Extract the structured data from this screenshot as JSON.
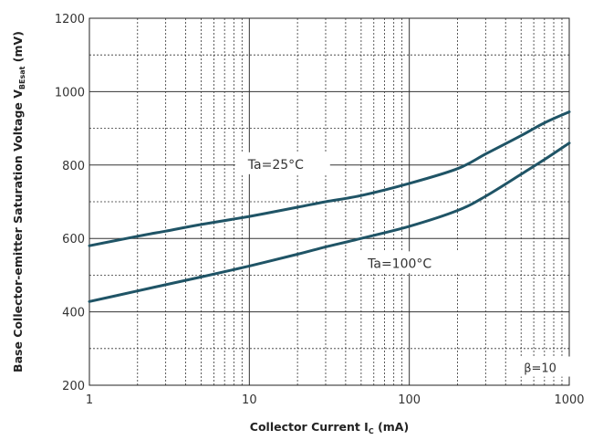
{
  "chart_data": {
    "type": "line",
    "xscale": "log",
    "xlim": [
      1,
      1000
    ],
    "ylim": [
      200,
      1200
    ],
    "x_ticks": [
      1,
      10,
      100,
      1000
    ],
    "x_tick_labels": [
      "1",
      "10",
      "100",
      "1000"
    ],
    "y_ticks": [
      200,
      400,
      600,
      800,
      1000,
      1200
    ],
    "y_tick_labels": [
      "200",
      "400",
      "600",
      "800",
      "1000",
      "1200"
    ],
    "grid": true,
    "xlabel": {
      "main": "Collector Current  I",
      "sub": "C",
      "unit": " (mA)"
    },
    "ylabel": {
      "main": "Base Collector-emitter Saturation Voltage  V",
      "sub": "BEsat",
      "unit": " (mV)"
    },
    "annotations": {
      "t25": "Ta=25°C",
      "t100": "Ta=100°C",
      "beta": "β=10"
    },
    "series": [
      {
        "name": "Ta=25°C",
        "color": "#1f5466",
        "x": [
          1,
          2,
          3,
          5,
          10,
          20,
          30,
          50,
          100,
          200,
          300,
          500,
          700,
          1000
        ],
        "y": [
          580,
          606,
          620,
          638,
          660,
          685,
          700,
          717,
          750,
          790,
          830,
          880,
          915,
          945
        ]
      },
      {
        "name": "Ta=100°C",
        "color": "#1f5466",
        "x": [
          1,
          2,
          3,
          5,
          10,
          20,
          30,
          50,
          100,
          200,
          300,
          500,
          700,
          1000
        ],
        "y": [
          428,
          457,
          474,
          495,
          525,
          557,
          577,
          600,
          633,
          676,
          715,
          775,
          815,
          860
        ]
      }
    ]
  }
}
